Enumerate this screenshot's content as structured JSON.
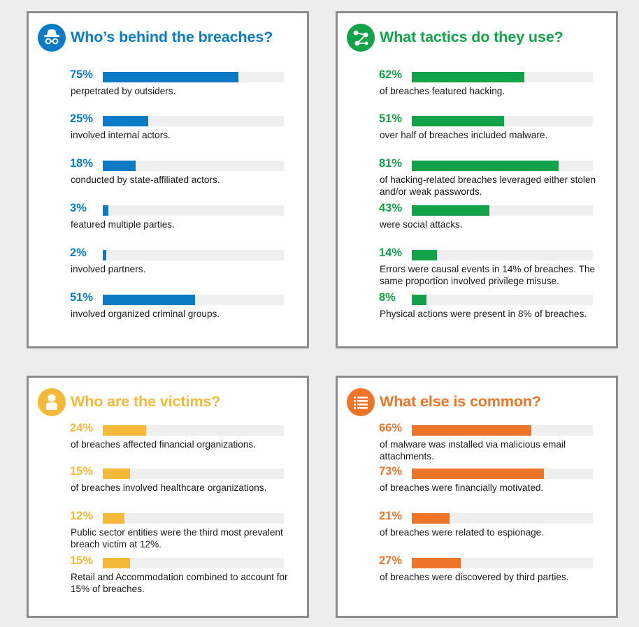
{
  "panels": [
    {
      "title": "Who’s behind the breaches?",
      "color": "#0b7bc6",
      "icon": "spy-icon",
      "stats": [
        {
          "pct_label": "75%",
          "value": 75,
          "text": "perpetrated by outsiders."
        },
        {
          "pct_label": "25%",
          "value": 25,
          "text": "involved internal actors."
        },
        {
          "pct_label": "18%",
          "value": 18,
          "text": "conducted by state-affiliated actors."
        },
        {
          "pct_label": "3%",
          "value": 3,
          "text": "featured multiple parties."
        },
        {
          "pct_label": "2%",
          "value": 2,
          "text": "involved partners."
        },
        {
          "pct_label": "51%",
          "value": 51,
          "text": "involved organized criminal groups."
        }
      ]
    },
    {
      "title": "What tactics do they use?",
      "color": "#12a24a",
      "icon": "network-icon",
      "stats": [
        {
          "pct_label": "62%",
          "value": 62,
          "text": "of breaches featured hacking."
        },
        {
          "pct_label": "51%",
          "value": 51,
          "text": "over half of breaches included malware."
        },
        {
          "pct_label": "81%",
          "value": 81,
          "text": "of hacking-related breaches leveraged either stolen and/or weak passwords."
        },
        {
          "pct_label": "43%",
          "value": 43,
          "text": "were social attacks."
        },
        {
          "pct_label": "14%",
          "value": 14,
          "text": "Errors were causal events in 14% of breaches. The same proportion involved privilege misuse."
        },
        {
          "pct_label": "8%",
          "value": 8,
          "text": "Physical actions were present in 8% of breaches."
        }
      ]
    },
    {
      "title": "Who are the victims?",
      "color": "#f5b93a",
      "icon": "person-icon",
      "stats": [
        {
          "pct_label": "24%",
          "value": 24,
          "text": "of breaches affected financial organizations."
        },
        {
          "pct_label": "15%",
          "value": 15,
          "text": "of breaches involved healthcare organizations."
        },
        {
          "pct_label": "12%",
          "value": 12,
          "text": "Public sector entities were the third most prevalent breach victim at 12%."
        },
        {
          "pct_label": "15%",
          "value": 15,
          "text": "Retail and Accommodation combined to account for 15% of breaches."
        }
      ]
    },
    {
      "title": "What else is common?",
      "color": "#ee7428",
      "icon": "list-icon",
      "stats": [
        {
          "pct_label": "66%",
          "value": 66,
          "text": "of malware was installed via malicious email attachments."
        },
        {
          "pct_label": "73%",
          "value": 73,
          "text": "of breaches were financially motivated."
        },
        {
          "pct_label": "21%",
          "value": 21,
          "text": "of breaches were related to espionage."
        },
        {
          "pct_label": "27%",
          "value": 27,
          "text": "of breaches were discovered by third parties."
        }
      ]
    }
  ],
  "chart_data": [
    {
      "type": "bar",
      "title": "Who’s behind the breaches?",
      "categories": [
        "perpetrated by outsiders.",
        "involved internal actors.",
        "conducted by state-affiliated actors.",
        "featured multiple parties.",
        "involved partners.",
        "involved organized criminal groups."
      ],
      "values": [
        75,
        25,
        18,
        3,
        2,
        51
      ],
      "ylim": [
        0,
        100
      ]
    },
    {
      "type": "bar",
      "title": "What tactics do they use?",
      "categories": [
        "of breaches featured hacking.",
        "over half of breaches included malware.",
        "of hacking-related breaches leveraged either stolen and/or weak passwords.",
        "were social attacks.",
        "Errors were causal events in 14% of breaches. The same proportion involved privilege misuse.",
        "Physical actions were present in 8% of breaches."
      ],
      "values": [
        62,
        51,
        81,
        43,
        14,
        8
      ],
      "ylim": [
        0,
        100
      ]
    },
    {
      "type": "bar",
      "title": "Who are the victims?",
      "categories": [
        "of breaches affected financial organizations.",
        "of breaches involved healthcare organizations.",
        "Public sector entities were the third most prevalent breach victim at 12%.",
        "Retail and Accommodation combined to account for 15% of breaches."
      ],
      "values": [
        24,
        15,
        12,
        15
      ],
      "ylim": [
        0,
        100
      ]
    },
    {
      "type": "bar",
      "title": "What else is common?",
      "categories": [
        "of malware was installed via malicious email attachments.",
        "of breaches were financially motivated.",
        "of breaches were related to espionage.",
        "of breaches were discovered by third parties."
      ],
      "values": [
        66,
        73,
        21,
        27
      ],
      "ylim": [
        0,
        100
      ]
    }
  ]
}
